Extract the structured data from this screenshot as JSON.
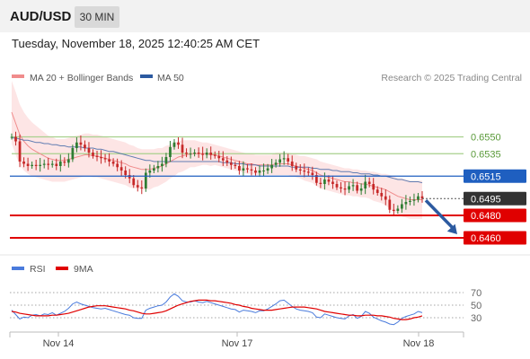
{
  "header": {
    "pair": "AUD/USD",
    "timeframe": "30 MIN",
    "datetime": "Tuesday, November 18, 2025 12:40:25 AM CET"
  },
  "legend": {
    "ma20_label": "MA 20 + Bollinger Bands",
    "ma50_label": "MA 50",
    "credit": "Research © 2025 Trading Central",
    "rsi_label": "RSI",
    "rsi_ma_label": "9MA"
  },
  "colors": {
    "ma20": "#f08c8c",
    "ma50": "#2c5aa0",
    "bollinger_fill": "#fde0e0",
    "candle_up": "#2e7d32",
    "candle_down": "#c62828",
    "support": "#e00000",
    "resistance": "#a8d08d",
    "pivot": "#1f5fc0",
    "forecast_arrow": "#2c5aa0",
    "rsi": "#4a7bdc",
    "rsi_ma": "#e00000"
  },
  "chart_data": [
    {
      "type": "line",
      "title": "AUD/USD 30 MIN",
      "x_ticks": [
        "Nov 14",
        "Nov 17",
        "Nov 18"
      ],
      "ylim": [
        0.6448,
        0.6592
      ],
      "price_levels": [
        {
          "label": "0.6550",
          "value": 0.655,
          "role": "resistance"
        },
        {
          "label": "0.6535",
          "value": 0.6535,
          "role": "resistance"
        },
        {
          "label": "0.6515",
          "value": 0.6515,
          "role": "pivot"
        },
        {
          "label": "0.6495",
          "value": 0.6495,
          "role": "last"
        },
        {
          "label": "0.6480",
          "value": 0.648,
          "role": "support"
        },
        {
          "label": "0.6460",
          "value": 0.646,
          "role": "support"
        }
      ],
      "last_price": 0.6495,
      "forecast": {
        "direction": "down",
        "from": 0.6495,
        "to": 0.646
      },
      "close": [
        0.655,
        0.6546,
        0.6528,
        0.6526,
        0.6524,
        0.6525,
        0.6524,
        0.6525,
        0.6526,
        0.6525,
        0.6526,
        0.6524,
        0.6528,
        0.6527,
        0.653,
        0.654,
        0.6545,
        0.6543,
        0.654,
        0.6536,
        0.6533,
        0.6532,
        0.6531,
        0.653,
        0.6528,
        0.6526,
        0.6523,
        0.652,
        0.6516,
        0.6513,
        0.6507,
        0.6505,
        0.6504,
        0.6518,
        0.652,
        0.6522,
        0.6524,
        0.6526,
        0.6532,
        0.6541,
        0.6545,
        0.6543,
        0.6536,
        0.6535,
        0.6535,
        0.6536,
        0.6535,
        0.6534,
        0.6536,
        0.6534,
        0.6533,
        0.6531,
        0.6529,
        0.6527,
        0.6525,
        0.6524,
        0.652,
        0.6522,
        0.6521,
        0.652,
        0.6518,
        0.652,
        0.652,
        0.6522,
        0.6525,
        0.6527,
        0.653,
        0.6531,
        0.6528,
        0.6524,
        0.6521,
        0.652,
        0.6519,
        0.6518,
        0.6516,
        0.6509,
        0.6508,
        0.6512,
        0.651,
        0.6508,
        0.6505,
        0.6504,
        0.6503,
        0.6506,
        0.6507,
        0.6502,
        0.6504,
        0.651,
        0.6508,
        0.6503,
        0.65,
        0.6497,
        0.6494,
        0.6485,
        0.6484,
        0.6486,
        0.649,
        0.6492,
        0.6493,
        0.6494,
        0.6497,
        0.6495
      ],
      "ma20": [
        0.6572,
        0.6562,
        0.6552,
        0.6546,
        0.6542,
        0.6539,
        0.6537,
        0.6535,
        0.6533,
        0.6531,
        0.653,
        0.6529,
        0.6529,
        0.6529,
        0.653,
        0.6531,
        0.6532,
        0.6533,
        0.6534,
        0.6534,
        0.6533,
        0.6533,
        0.6532,
        0.6531,
        0.653,
        0.6529,
        0.6528,
        0.6527,
        0.6526,
        0.6524,
        0.6523,
        0.6522,
        0.6521,
        0.6521,
        0.6521,
        0.6522,
        0.6523,
        0.6524,
        0.6526,
        0.6528,
        0.653,
        0.6532,
        0.6533,
        0.6534,
        0.6535,
        0.6535,
        0.6535,
        0.6535,
        0.6535,
        0.6534,
        0.6534,
        0.6533,
        0.6532,
        0.6531,
        0.653,
        0.6529,
        0.6528,
        0.6527,
        0.6526,
        0.6526,
        0.6525,
        0.6525,
        0.6525,
        0.6525,
        0.6525,
        0.6526,
        0.6526,
        0.6526,
        0.6526,
        0.6525,
        0.6524,
        0.6523,
        0.6522,
        0.6521,
        0.652,
        0.6518,
        0.6516,
        0.6515,
        0.6514,
        0.6513,
        0.6512,
        0.6511,
        0.651,
        0.651,
        0.6509,
        0.6509,
        0.6508,
        0.6508,
        0.6507,
        0.6506,
        0.6505,
        0.6504,
        0.6503,
        0.6501,
        0.6499,
        0.6497,
        0.6496,
        0.6495,
        0.6494,
        0.6494,
        0.6494,
        0.6494
      ],
      "ma50": [
        0.6549,
        0.6549,
        0.6548,
        0.6547,
        0.6547,
        0.6546,
        0.6545,
        0.6545,
        0.6544,
        0.6544,
        0.6543,
        0.6543,
        0.6542,
        0.6542,
        0.6541,
        0.6541,
        0.6541,
        0.6541,
        0.654,
        0.654,
        0.654,
        0.6539,
        0.6539,
        0.6538,
        0.6537,
        0.6537,
        0.6536,
        0.6535,
        0.6534,
        0.6533,
        0.6532,
        0.6531,
        0.653,
        0.6529,
        0.6529,
        0.6528,
        0.6528,
        0.6528,
        0.6528,
        0.6528,
        0.6528,
        0.6528,
        0.6528,
        0.6528,
        0.6528,
        0.6528,
        0.6528,
        0.6528,
        0.6528,
        0.6528,
        0.6528,
        0.6528,
        0.6527,
        0.6527,
        0.6527,
        0.6526,
        0.6526,
        0.6526,
        0.6525,
        0.6525,
        0.6525,
        0.6524,
        0.6524,
        0.6524,
        0.6524,
        0.6524,
        0.6524,
        0.6524,
        0.6524,
        0.6523,
        0.6523,
        0.6523,
        0.6523,
        0.6523,
        0.6522,
        0.6522,
        0.6521,
        0.6521,
        0.6521,
        0.652,
        0.652,
        0.6519,
        0.6519,
        0.6519,
        0.6518,
        0.6518,
        0.6517,
        0.6517,
        0.6517,
        0.6516,
        0.6516,
        0.6515,
        0.6515,
        0.6514,
        0.6513,
        0.6512,
        0.6512,
        0.6511,
        0.651,
        0.651,
        0.651,
        0.6509
      ],
      "bollinger_width": [
        0.0028,
        0.0028,
        0.0027,
        0.0026,
        0.0025,
        0.0024,
        0.0023,
        0.0022,
        0.0021,
        0.002,
        0.002,
        0.0019,
        0.0019,
        0.0019,
        0.0019,
        0.0019,
        0.0019,
        0.0019,
        0.0019,
        0.0019,
        0.0019,
        0.0019,
        0.0019,
        0.0019,
        0.0019,
        0.0019,
        0.0019,
        0.0019,
        0.0019,
        0.0019,
        0.0019,
        0.0018,
        0.0018,
        0.0018,
        0.0018,
        0.0017,
        0.0017,
        0.0016,
        0.0016,
        0.0015,
        0.0015,
        0.0014,
        0.0014,
        0.0013,
        0.0012,
        0.0012,
        0.0011,
        0.001,
        0.001,
        0.001,
        0.0009,
        0.0009,
        0.0009,
        0.0009,
        0.0009,
        0.0009,
        0.0009,
        0.0009,
        0.0009,
        0.0009,
        0.0009,
        0.0009,
        0.0009,
        0.0009,
        0.0009,
        0.001,
        0.001,
        0.001,
        0.001,
        0.001,
        0.001,
        0.001,
        0.0011,
        0.0011,
        0.0011,
        0.0012,
        0.0012,
        0.0012,
        0.0012,
        0.0012,
        0.0012,
        0.0012,
        0.0012,
        0.0012,
        0.0012,
        0.0012,
        0.0012,
        0.0012,
        0.0012,
        0.0013,
        0.0013,
        0.0013,
        0.0014,
        0.0015,
        0.0016,
        0.0016,
        0.0017,
        0.0017,
        0.0017,
        0.0017,
        0.0017,
        0.0017
      ]
    },
    {
      "type": "line",
      "title": "RSI",
      "y_ticks": [
        70,
        50,
        30
      ],
      "ylim": [
        10,
        90
      ],
      "series": [
        {
          "name": "RSI",
          "values": [
            42,
            35,
            28,
            31,
            30,
            34,
            35,
            33,
            36,
            35,
            38,
            34,
            37,
            40,
            45,
            52,
            55,
            52,
            50,
            48,
            46,
            45,
            44,
            45,
            43,
            41,
            39,
            37,
            35,
            34,
            30,
            29,
            29,
            42,
            45,
            47,
            49,
            50,
            55,
            63,
            68,
            64,
            57,
            55,
            55,
            57,
            55,
            54,
            56,
            54,
            52,
            50,
            48,
            46,
            44,
            43,
            39,
            42,
            41,
            40,
            38,
            41,
            41,
            44,
            48,
            52,
            57,
            58,
            53,
            48,
            44,
            42,
            41,
            40,
            38,
            31,
            30,
            36,
            34,
            32,
            30,
            29,
            28,
            33,
            35,
            29,
            32,
            40,
            37,
            31,
            28,
            25,
            23,
            20,
            19,
            23,
            29,
            32,
            34,
            36,
            40,
            38
          ]
        },
        {
          "name": "9MA",
          "values": [
            40,
            39,
            37,
            36,
            35,
            34,
            33,
            33,
            33,
            33,
            34,
            34,
            35,
            36,
            37,
            39,
            41,
            43,
            45,
            47,
            48,
            49,
            49,
            49,
            48,
            47,
            46,
            45,
            44,
            42,
            41,
            39,
            37,
            36,
            36,
            37,
            38,
            39,
            41,
            44,
            47,
            50,
            52,
            54,
            56,
            57,
            58,
            58,
            58,
            57,
            57,
            56,
            55,
            54,
            53,
            51,
            50,
            48,
            47,
            45,
            44,
            43,
            42,
            42,
            42,
            43,
            44,
            45,
            46,
            47,
            47,
            47,
            47,
            46,
            45,
            44,
            42,
            40,
            39,
            38,
            37,
            36,
            35,
            34,
            34,
            33,
            33,
            34,
            34,
            34,
            33,
            33,
            32,
            31,
            29,
            28,
            27,
            27,
            28,
            30,
            31,
            33
          ]
        }
      ]
    }
  ]
}
